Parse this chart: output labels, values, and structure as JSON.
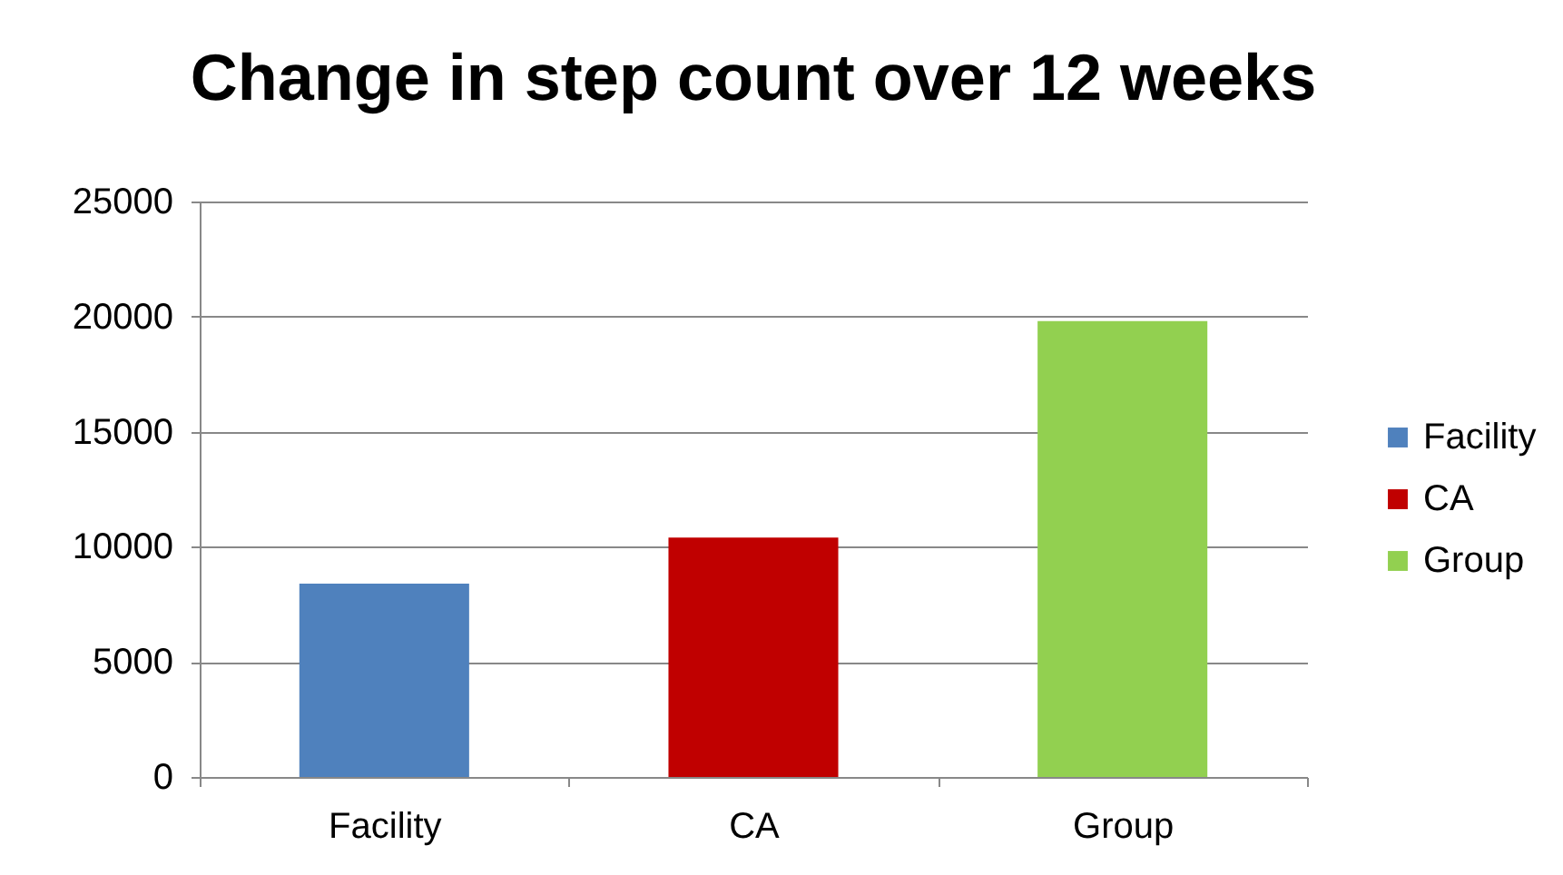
{
  "chart_data": {
    "type": "bar",
    "title": "Change in step count over 12 weeks",
    "categories": [
      "Facility",
      "CA",
      "Group"
    ],
    "series": [
      {
        "name": "Facility",
        "color": "#4f81bd",
        "values": [
          8400,
          null,
          null
        ]
      },
      {
        "name": "CA",
        "color": "#c00000",
        "values": [
          null,
          10400,
          null
        ]
      },
      {
        "name": "Group",
        "color": "#92d050",
        "values": [
          null,
          null,
          19800
        ]
      }
    ],
    "ylim": [
      0,
      25000
    ],
    "yticks": [
      0,
      5000,
      10000,
      15000,
      20000,
      25000
    ],
    "grid": "y",
    "legend": "right"
  }
}
